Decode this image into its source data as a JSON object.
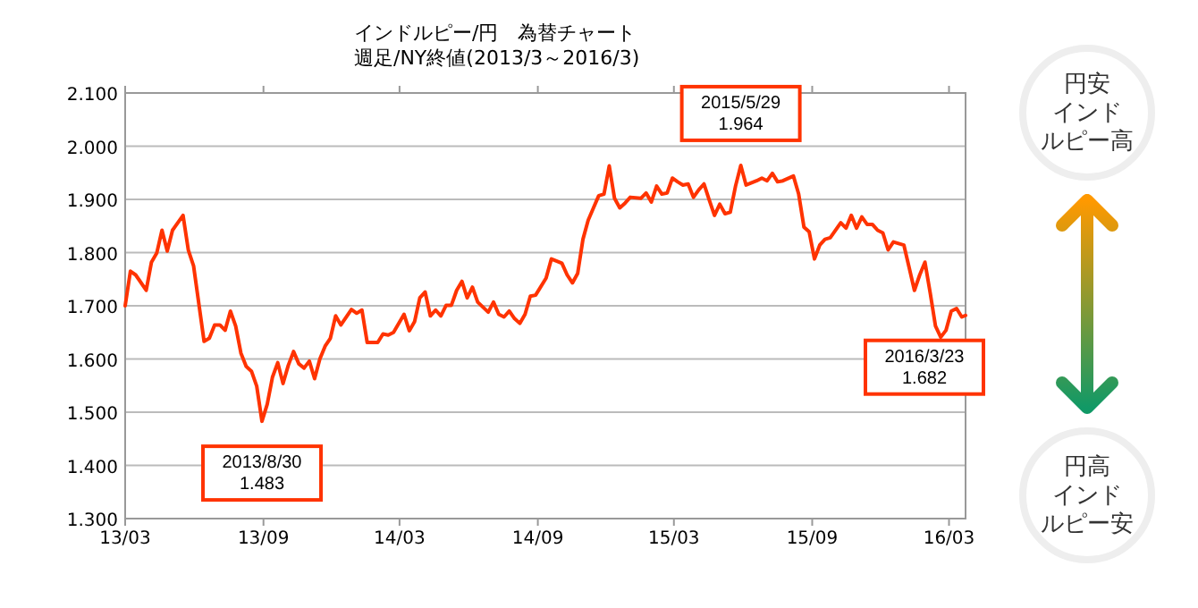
{
  "chart_data": {
    "type": "line",
    "title": "インドルピー/円　為替チャート",
    "subtitle": "週足/NY終値(2013/3～2016/3)",
    "x": [
      "2013-03-01",
      "2013-03-08",
      "2013-03-15",
      "2013-03-29",
      "2013-04-05",
      "2013-04-12",
      "2013-04-19",
      "2013-04-26",
      "2013-05-03",
      "2013-05-17",
      "2013-05-24",
      "2013-05-31",
      "2013-06-14",
      "2013-06-21",
      "2013-06-28",
      "2013-07-05",
      "2013-07-12",
      "2013-07-19",
      "2013-07-26",
      "2013-08-02",
      "2013-08-09",
      "2013-08-16",
      "2013-08-23",
      "2013-08-30",
      "2013-09-06",
      "2013-09-13",
      "2013-09-20",
      "2013-09-27",
      "2013-10-04",
      "2013-10-11",
      "2013-10-18",
      "2013-10-25",
      "2013-11-01",
      "2013-11-08",
      "2013-11-15",
      "2013-11-22",
      "2013-11-29",
      "2013-12-06",
      "2013-12-13",
      "2013-12-27",
      "2014-01-03",
      "2014-01-10",
      "2014-01-17",
      "2014-01-31",
      "2014-02-07",
      "2014-02-14",
      "2014-02-21",
      "2014-03-07",
      "2014-03-14",
      "2014-03-21",
      "2014-03-28",
      "2014-04-04",
      "2014-04-11",
      "2014-04-18",
      "2014-04-25",
      "2014-05-02",
      "2014-05-09",
      "2014-05-16",
      "2014-05-23",
      "2014-05-30",
      "2014-06-06",
      "2014-06-13",
      "2014-06-27",
      "2014-07-04",
      "2014-07-11",
      "2014-07-18",
      "2014-07-25",
      "2014-08-01",
      "2014-08-08",
      "2014-08-15",
      "2014-08-22",
      "2014-08-29",
      "2014-09-12",
      "2014-09-19",
      "2014-10-03",
      "2014-10-10",
      "2014-10-17",
      "2014-10-24",
      "2014-10-31",
      "2014-11-07",
      "2014-11-14",
      "2014-11-21",
      "2014-11-28",
      "2014-12-05",
      "2014-12-12",
      "2014-12-19",
      "2014-12-26",
      "2015-01-02",
      "2015-01-16",
      "2015-01-23",
      "2015-01-30",
      "2015-02-06",
      "2015-02-13",
      "2015-02-20",
      "2015-02-27",
      "2015-03-06",
      "2015-03-13",
      "2015-03-20",
      "2015-03-27",
      "2015-04-03",
      "2015-04-10",
      "2015-04-17",
      "2015-04-24",
      "2015-05-01",
      "2015-05-08",
      "2015-05-15",
      "2015-05-22",
      "2015-05-29",
      "2015-06-05",
      "2015-06-19",
      "2015-06-26",
      "2015-07-03",
      "2015-07-10",
      "2015-07-17",
      "2015-07-24",
      "2015-08-07",
      "2015-08-14",
      "2015-08-21",
      "2015-08-28",
      "2015-09-04",
      "2015-09-11",
      "2015-09-18",
      "2015-09-25",
      "2015-10-09",
      "2015-10-16",
      "2015-10-23",
      "2015-10-30",
      "2015-11-06",
      "2015-11-13",
      "2015-11-20",
      "2015-11-27",
      "2015-12-04",
      "2015-12-11",
      "2015-12-18",
      "2015-12-25",
      "2016-01-01",
      "2016-01-15",
      "2016-01-22",
      "2016-01-29",
      "2016-02-05",
      "2016-02-12",
      "2016-02-19",
      "2016-02-26",
      "2016-03-04",
      "2016-03-11",
      "2016-03-18",
      "2016-03-23"
    ],
    "values": [
      1.7,
      1.765,
      1.758,
      1.729,
      1.782,
      1.799,
      1.842,
      1.803,
      1.842,
      1.87,
      1.805,
      1.775,
      1.633,
      1.639,
      1.664,
      1.664,
      1.654,
      1.69,
      1.662,
      1.611,
      1.586,
      1.577,
      1.549,
      1.483,
      1.515,
      1.566,
      1.593,
      1.554,
      1.588,
      1.614,
      1.591,
      1.583,
      1.596,
      1.563,
      1.6,
      1.624,
      1.639,
      1.681,
      1.664,
      1.693,
      1.686,
      1.692,
      1.631,
      1.631,
      1.647,
      1.645,
      1.65,
      1.684,
      1.653,
      1.67,
      1.715,
      1.726,
      1.681,
      1.692,
      1.681,
      1.701,
      1.701,
      1.729,
      1.746,
      1.715,
      1.735,
      1.707,
      1.688,
      1.707,
      1.684,
      1.679,
      1.69,
      1.676,
      1.667,
      1.684,
      1.718,
      1.72,
      1.752,
      1.788,
      1.78,
      1.758,
      1.743,
      1.761,
      1.825,
      1.861,
      1.884,
      1.907,
      1.91,
      1.963,
      1.902,
      1.884,
      1.893,
      1.904,
      1.902,
      1.912,
      1.895,
      1.925,
      1.91,
      1.912,
      1.94,
      1.933,
      1.927,
      1.929,
      1.904,
      1.918,
      1.929,
      1.899,
      1.87,
      1.891,
      1.873,
      1.876,
      1.925,
      1.964,
      1.927,
      1.935,
      1.94,
      1.935,
      1.949,
      1.933,
      1.935,
      1.944,
      1.91,
      1.848,
      1.839,
      1.788,
      1.814,
      1.825,
      1.828,
      1.856,
      1.846,
      1.87,
      1.846,
      1.867,
      1.853,
      1.853,
      1.842,
      1.837,
      1.805,
      1.82,
      1.817,
      1.814,
      1.729,
      1.758,
      1.782,
      1.724,
      1.662,
      1.641,
      1.654,
      1.69,
      1.695,
      1.679,
      1.682
    ],
    "color": "#ff3300",
    "xlim": [
      "2013-03-01",
      "2016-03-23"
    ],
    "xticks": [
      {
        "value": "2013-03-01",
        "label": "13/03"
      },
      {
        "value": "2013-09-01",
        "label": "13/09"
      },
      {
        "value": "2014-03-01",
        "label": "14/03"
      },
      {
        "value": "2014-09-01",
        "label": "14/09"
      },
      {
        "value": "2015-03-01",
        "label": "15/03"
      },
      {
        "value": "2015-09-01",
        "label": "15/09"
      },
      {
        "value": "2016-03-01",
        "label": "16/03"
      }
    ],
    "ylim": [
      1.3,
      2.1
    ],
    "yticks": [
      {
        "value": 1.3,
        "label": "1.300"
      },
      {
        "value": 1.4,
        "label": "1.400"
      },
      {
        "value": 1.5,
        "label": "1.500"
      },
      {
        "value": 1.6,
        "label": "1.600"
      },
      {
        "value": 1.7,
        "label": "1.700"
      },
      {
        "value": 1.8,
        "label": "1.800"
      },
      {
        "value": 1.9,
        "label": "1.900"
      },
      {
        "value": 2.0,
        "label": "2.000"
      },
      {
        "value": 2.1,
        "label": "2.100"
      }
    ],
    "grid": "y",
    "annotations": [
      {
        "text": "2013/8/30\n1.483",
        "x": "2013-08-30",
        "y": 1.483
      },
      {
        "text": "2015/5/29\n1.964",
        "x": "2015-05-29",
        "y": 1.964
      },
      {
        "text": "2016/3/23\n1.682",
        "x": "2016-03-23",
        "y": 1.682
      },
      "円安インドルピー高",
      "円高インドルピー安"
    ]
  }
}
